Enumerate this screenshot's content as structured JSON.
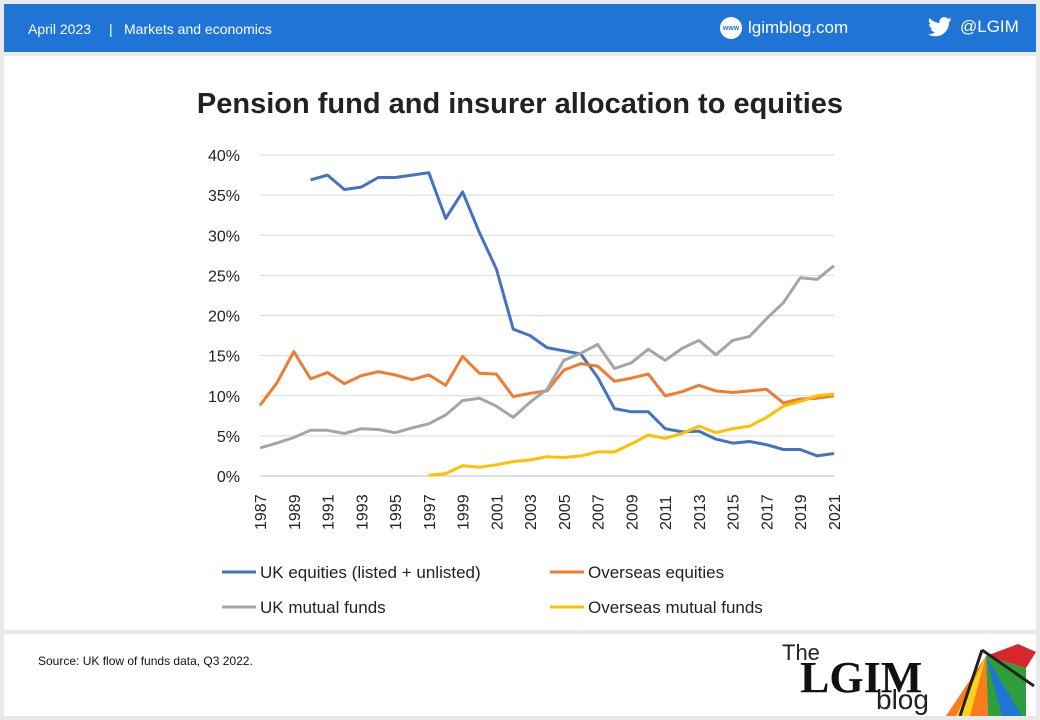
{
  "header": {
    "date": "April 2023",
    "separator": "|",
    "category": "Markets and economics",
    "site": "lgimblog.com",
    "site_icon": "www-icon",
    "site_icon_text": "www",
    "twitter_handle": "@LGIM",
    "twitter_icon": "twitter-bird-icon"
  },
  "footer": {
    "source": "Source: UK flow of funds data, Q3 2022.",
    "logo_the": "The",
    "logo_lgim": "LGIM",
    "logo_blog": "blog"
  },
  "colors": {
    "brand_blue": "#1f74d6",
    "series": [
      "#4472c4",
      "#ed7d31",
      "#a5a5a5",
      "#ffc000"
    ]
  },
  "chart_data": {
    "type": "line",
    "title": "Pension fund and insurer allocation to equities",
    "xlabel": "",
    "ylabel": "",
    "ylim": [
      0,
      40
    ],
    "yticks": [
      "0%",
      "5%",
      "10%",
      "15%",
      "20%",
      "25%",
      "30%",
      "35%",
      "40%"
    ],
    "xticks": [
      "1987",
      "1989",
      "1991",
      "1993",
      "1995",
      "1997",
      "1999",
      "2001",
      "2003",
      "2005",
      "2007",
      "2009",
      "2011",
      "2013",
      "2015",
      "2017",
      "2019",
      "2021"
    ],
    "grid": "horizontal",
    "legend_position": "bottom",
    "x": [
      1987,
      1988,
      1989,
      1990,
      1991,
      1992,
      1993,
      1994,
      1995,
      1996,
      1997,
      1998,
      1999,
      2000,
      2001,
      2002,
      2003,
      2004,
      2005,
      2006,
      2007,
      2008,
      2009,
      2010,
      2011,
      2012,
      2013,
      2014,
      2015,
      2016,
      2017,
      2018,
      2019,
      2020,
      2021
    ],
    "series": [
      {
        "name": "UK equities (listed + unlisted)",
        "color": "#4472c4",
        "values": [
          null,
          null,
          null,
          36.9,
          37.5,
          35.7,
          36.0,
          37.2,
          37.2,
          37.5,
          37.8,
          32.1,
          35.4,
          30.3,
          25.8,
          18.3,
          17.5,
          16.0,
          15.6,
          15.2,
          12.3,
          8.4,
          8.0,
          8.0,
          5.9,
          5.5,
          5.6,
          4.6,
          4.1,
          4.3,
          3.9,
          3.3,
          3.3,
          2.5,
          2.8
        ]
      },
      {
        "name": "Overseas equities",
        "color": "#ed7d31",
        "values": [
          8.8,
          11.6,
          15.5,
          12.1,
          12.9,
          11.5,
          12.5,
          13.0,
          12.6,
          12.0,
          12.6,
          11.3,
          14.9,
          12.8,
          12.7,
          9.9,
          10.3,
          10.6,
          13.2,
          14.0,
          13.7,
          11.8,
          12.2,
          12.7,
          10.0,
          10.5,
          11.3,
          10.6,
          10.4,
          10.6,
          10.8,
          9.1,
          9.6,
          9.7,
          10.0
        ]
      },
      {
        "name": "UK mutual funds",
        "color": "#a5a5a5",
        "values": [
          3.5,
          4.1,
          4.8,
          5.7,
          5.7,
          5.3,
          5.9,
          5.8,
          5.4,
          6.0,
          6.5,
          7.6,
          9.4,
          9.7,
          8.7,
          7.3,
          9.2,
          10.8,
          14.4,
          15.3,
          16.4,
          13.4,
          14.1,
          15.8,
          14.4,
          15.9,
          16.9,
          15.1,
          16.9,
          17.4,
          19.6,
          21.6,
          24.7,
          24.5,
          26.2
        ]
      },
      {
        "name": "Overseas mutual funds",
        "color": "#ffc000",
        "values": [
          null,
          null,
          null,
          null,
          null,
          null,
          null,
          null,
          null,
          null,
          0.1,
          0.3,
          1.3,
          1.1,
          1.4,
          1.8,
          2.0,
          2.4,
          2.3,
          2.5,
          3.0,
          3.0,
          4.0,
          5.1,
          4.7,
          5.3,
          6.2,
          5.4,
          5.9,
          6.2,
          7.3,
          8.7,
          9.3,
          10.0,
          10.2
        ]
      }
    ]
  }
}
